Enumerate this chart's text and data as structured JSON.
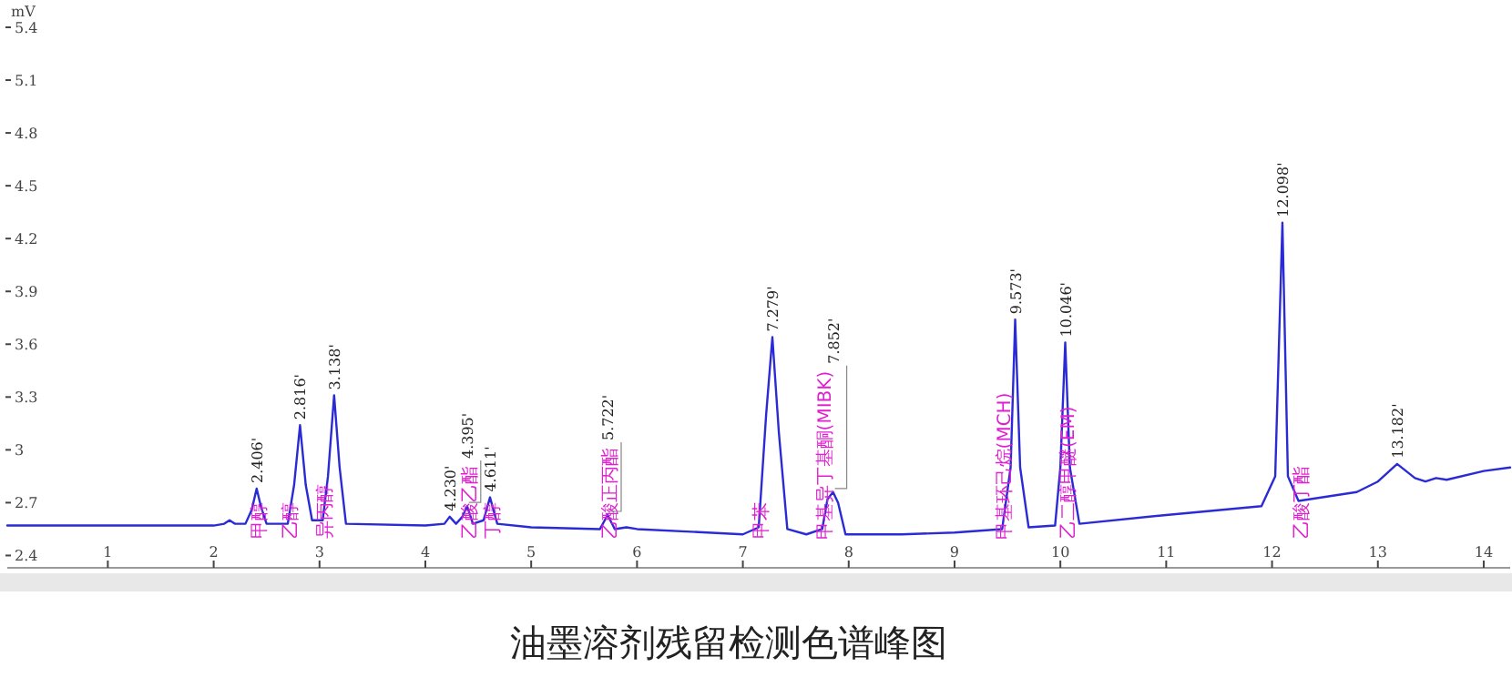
{
  "chart_data": {
    "type": "line",
    "title": "油墨溶剂残留检测色谱峰图",
    "ylabel": "mV",
    "x": [
      0.05,
      1,
      2,
      2.1,
      2.15,
      2.2,
      2.3,
      2.36,
      2.406,
      2.45,
      2.5,
      2.7,
      2.76,
      2.816,
      2.87,
      2.93,
      3.03,
      3.08,
      3.138,
      3.19,
      3.25,
      4.0,
      4.18,
      4.23,
      4.29,
      4.35,
      4.395,
      4.45,
      4.55,
      4.611,
      4.68,
      5.0,
      5.65,
      5.722,
      5.79,
      5.9,
      6.0,
      7.0,
      7.15,
      7.22,
      7.279,
      7.34,
      7.42,
      7.6,
      7.75,
      7.8,
      7.852,
      7.9,
      7.97,
      8.5,
      9.0,
      9.45,
      9.53,
      9.573,
      9.62,
      9.7,
      9.95,
      10.0,
      10.046,
      10.09,
      10.18,
      11,
      11.9,
      12.03,
      12.098,
      12.15,
      12.25,
      12.8,
      13.0,
      13.182,
      13.35,
      13.45,
      13.55,
      13.65,
      14.0,
      14.25
    ],
    "series": [
      {
        "color": "#2b2bd6",
        "values": [
          2.57,
          2.57,
          2.57,
          2.58,
          2.6,
          2.58,
          2.58,
          2.66,
          2.78,
          2.67,
          2.58,
          2.58,
          2.8,
          3.14,
          2.8,
          2.6,
          2.6,
          2.85,
          3.31,
          2.9,
          2.58,
          2.57,
          2.58,
          2.62,
          2.58,
          2.62,
          2.68,
          2.58,
          2.6,
          2.73,
          2.58,
          2.56,
          2.55,
          2.63,
          2.55,
          2.56,
          2.55,
          2.52,
          2.56,
          3.2,
          3.64,
          3.1,
          2.55,
          2.52,
          2.55,
          2.72,
          2.76,
          2.7,
          2.52,
          2.52,
          2.53,
          2.55,
          2.9,
          3.74,
          2.9,
          2.56,
          2.57,
          2.9,
          3.61,
          2.9,
          2.58,
          2.63,
          2.68,
          2.85,
          4.29,
          2.85,
          2.71,
          2.76,
          2.82,
          2.92,
          2.84,
          2.82,
          2.84,
          2.83,
          2.88,
          2.9
        ]
      }
    ],
    "xlim": [
      0.05,
      14.25
    ],
    "ylim": [
      2.33,
      5.4
    ],
    "xticks": [
      1,
      2,
      3,
      4,
      5,
      6,
      7,
      8,
      9,
      10,
      11,
      12,
      13,
      14
    ],
    "yticks": [
      2.4,
      2.7,
      3,
      3.3,
      3.6,
      3.9,
      4.2,
      4.5,
      4.8,
      5.1,
      5.4
    ],
    "grid": false,
    "annotations": [
      {
        "text": "2.406'",
        "x": 2.406,
        "y": 2.78
      },
      {
        "text": "2.816'",
        "x": 2.816,
        "y": 3.14
      },
      {
        "text": "3.138'",
        "x": 3.138,
        "y": 3.31
      },
      {
        "text": "4.230'",
        "x": 4.23,
        "y": 2.62
      },
      {
        "text": "4.395'",
        "x": 4.395,
        "y": 2.68
      },
      {
        "text": "4.611'",
        "x": 4.611,
        "y": 2.73
      },
      {
        "text": "5.722'",
        "x": 5.722,
        "y": 2.63
      },
      {
        "text": "7.279'",
        "x": 7.279,
        "y": 3.64
      },
      {
        "text": "7.852'",
        "x": 7.852,
        "y": 2.76
      },
      {
        "text": "9.573'",
        "x": 9.573,
        "y": 3.74
      },
      {
        "text": "10.046'",
        "x": 10.046,
        "y": 3.61
      },
      {
        "text": "12.098'",
        "x": 12.098,
        "y": 4.29
      },
      {
        "text": "13.182'",
        "x": 13.182,
        "y": 2.92
      },
      {
        "text": "甲醇",
        "x": 2.406,
        "y": 2.58
      },
      {
        "text": "乙醇",
        "x": 2.7,
        "y": 2.58
      },
      {
        "text": "异丙醇",
        "x": 3.03,
        "y": 2.6
      },
      {
        "text": "乙酸乙酯",
        "x": 4.395,
        "y": 2.6
      },
      {
        "text": "丁醇",
        "x": 4.611,
        "y": 2.59
      },
      {
        "text": "乙酸正丙酯",
        "x": 5.722,
        "y": 2.56
      },
      {
        "text": "甲苯",
        "x": 7.15,
        "y": 2.56
      },
      {
        "text": "甲基异丁基酮(MIBK)",
        "x": 7.75,
        "y": 2.55
      },
      {
        "text": "甲基环己烷(MCH)",
        "x": 9.45,
        "y": 2.55
      },
      {
        "text": "乙二醇甲醚(EM)",
        "x": 10.046,
        "y": 2.57
      },
      {
        "text": "乙酸丁酯",
        "x": 12.25,
        "y": 2.71
      }
    ]
  }
}
